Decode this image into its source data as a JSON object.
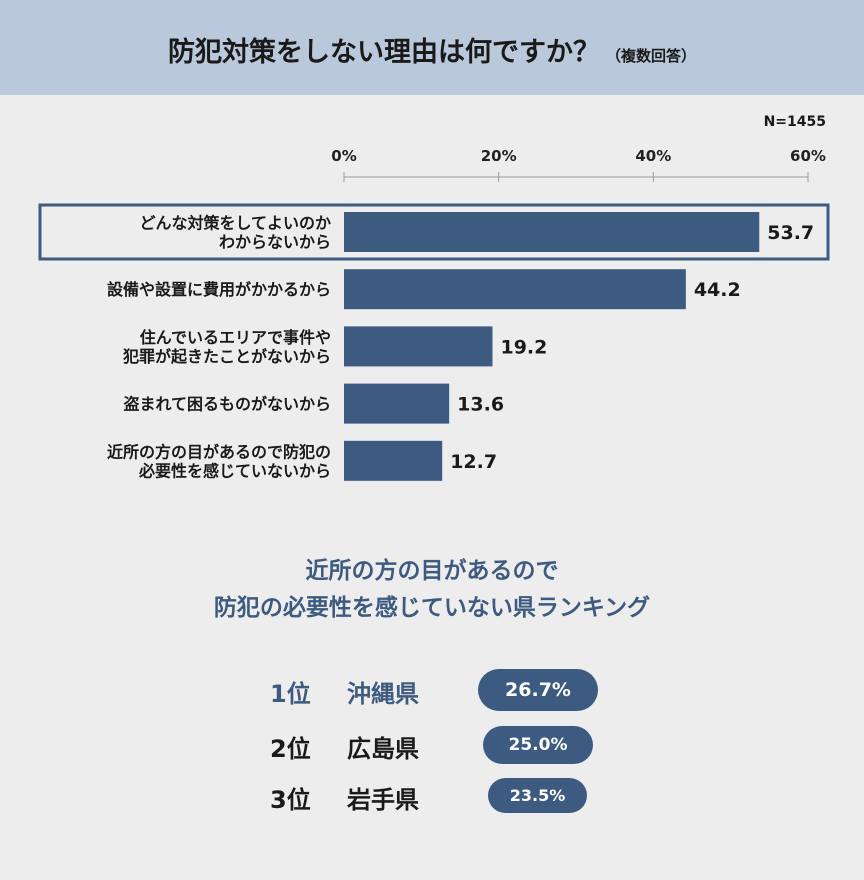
{
  "header": {
    "title": "防犯対策をしない理由は何ですか？",
    "subtitle": "（複数回答）"
  },
  "sample_size": "N=1455",
  "chart_data": {
    "type": "bar",
    "orientation": "horizontal",
    "categories": [
      "どんな対策をしてよいのか\nわからないから",
      "設備や設置に費用がかかるから",
      "住んでいるエリアで事件や\n犯罪が起きたことがないから",
      "盗まれて困るものがないから",
      "近所の方の目があるので防犯の\n必要性を感じていないから"
    ],
    "values": [
      53.7,
      44.2,
      19.2,
      13.6,
      12.7
    ],
    "value_labels": [
      "53.7",
      "44.2",
      "19.2",
      "13.6",
      "12.7"
    ],
    "xlim": [
      0,
      60
    ],
    "xticks": [
      "0%",
      "20%",
      "40%",
      "60%"
    ],
    "highlighted_index": 0,
    "bar_color": "#3d5a80"
  },
  "ranking": {
    "title_line1": "近所の方の目があるので",
    "title_line2": "防犯の必要性を感じていない県ランキング",
    "items": [
      {
        "rank": "1位",
        "prefecture": "沖縄県",
        "value": "26.7%"
      },
      {
        "rank": "2位",
        "prefecture": "広島県",
        "value": "25.0%"
      },
      {
        "rank": "3位",
        "prefecture": "岩手県",
        "value": "23.5%"
      }
    ]
  },
  "colors": {
    "header_bg": "#b9c8da",
    "accent": "#3d5a80",
    "background": "#ededed"
  }
}
